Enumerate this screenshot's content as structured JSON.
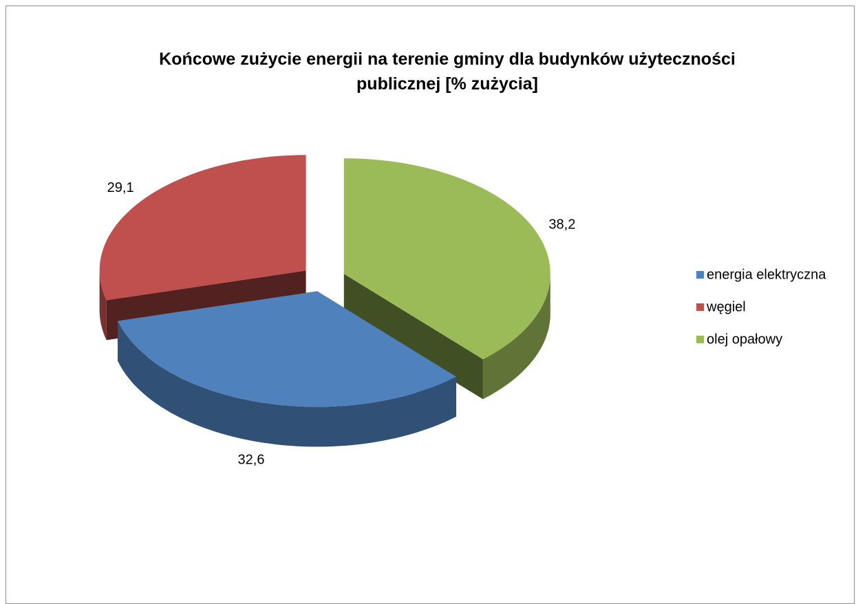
{
  "chart_data": {
    "type": "pie",
    "title": "Końcowe zużycie energii na terenie gminy dla budynków użyteczności publicznej [% zużycia]",
    "categories": [
      "energia elektryczna",
      "węgiel",
      "olej opałowy"
    ],
    "values": [
      32.6,
      29.1,
      38.2
    ],
    "value_labels": [
      "32,6",
      "29,1",
      "38,2"
    ],
    "colors": [
      "#4f81bd",
      "#c0504d",
      "#9bbb59"
    ],
    "legend": "right"
  }
}
